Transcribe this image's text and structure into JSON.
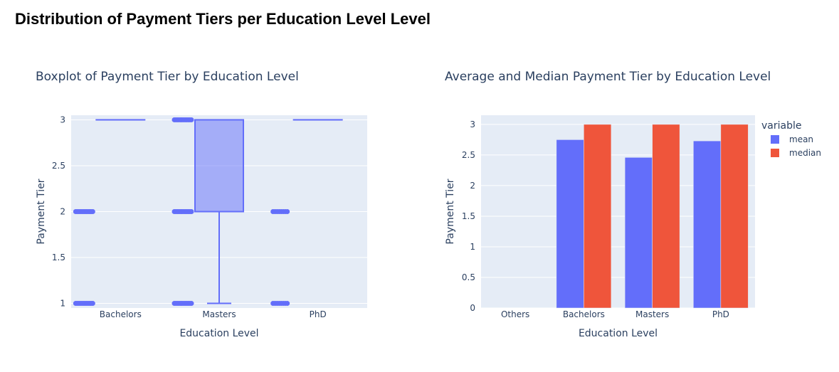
{
  "page_title": "Distribution of Payment Tiers per Education Level Level",
  "chart_data": [
    {
      "type": "box",
      "title": "Boxplot of Payment Tier by Education Level",
      "xlabel": "Education Level",
      "ylabel": "Payment Tier",
      "categories": [
        "Bachelors",
        "Masters",
        "PhD"
      ],
      "ylim": [
        0.95,
        3.05
      ],
      "yticks": [
        1,
        1.5,
        2,
        2.5,
        3
      ],
      "yticklabels": [
        "1",
        "1.5",
        "2",
        "2.5",
        "3"
      ],
      "boxes": [
        {
          "category": "Bachelors",
          "q1": 3,
          "median": 3,
          "q3": 3,
          "lower_whisker": 3,
          "upper_whisker": 3,
          "outliers": [
            1,
            2
          ]
        },
        {
          "category": "Masters",
          "q1": 2,
          "median": 3,
          "q3": 3,
          "lower_whisker": 1,
          "upper_whisker": 3,
          "outliers": [
            1,
            2,
            3
          ]
        },
        {
          "category": "PhD",
          "q1": 3,
          "median": 3,
          "q3": 3,
          "lower_whisker": 3,
          "upper_whisker": 3,
          "outliers": [
            1,
            2
          ]
        }
      ],
      "color": "#636efa",
      "grid": true
    },
    {
      "type": "bar",
      "title": "Average and Median Payment Tier by Education Level",
      "xlabel": "Education Level",
      "ylabel": "Payment Tier",
      "categories": [
        "Others",
        "Bachelors",
        "Masters",
        "PhD"
      ],
      "ylim": [
        0,
        3.15
      ],
      "yticks": [
        0,
        0.5,
        1,
        1.5,
        2,
        2.5,
        3
      ],
      "yticklabels": [
        "0",
        "0.5",
        "1",
        "1.5",
        "2",
        "2.5",
        "3"
      ],
      "legend_title": "variable",
      "legend_position": "top-right",
      "series": [
        {
          "name": "mean",
          "color": "#636efa",
          "values": [
            null,
            2.75,
            2.46,
            2.73
          ]
        },
        {
          "name": "median",
          "color": "#ef553b",
          "values": [
            null,
            3,
            3,
            3
          ]
        }
      ],
      "grid": true
    }
  ]
}
